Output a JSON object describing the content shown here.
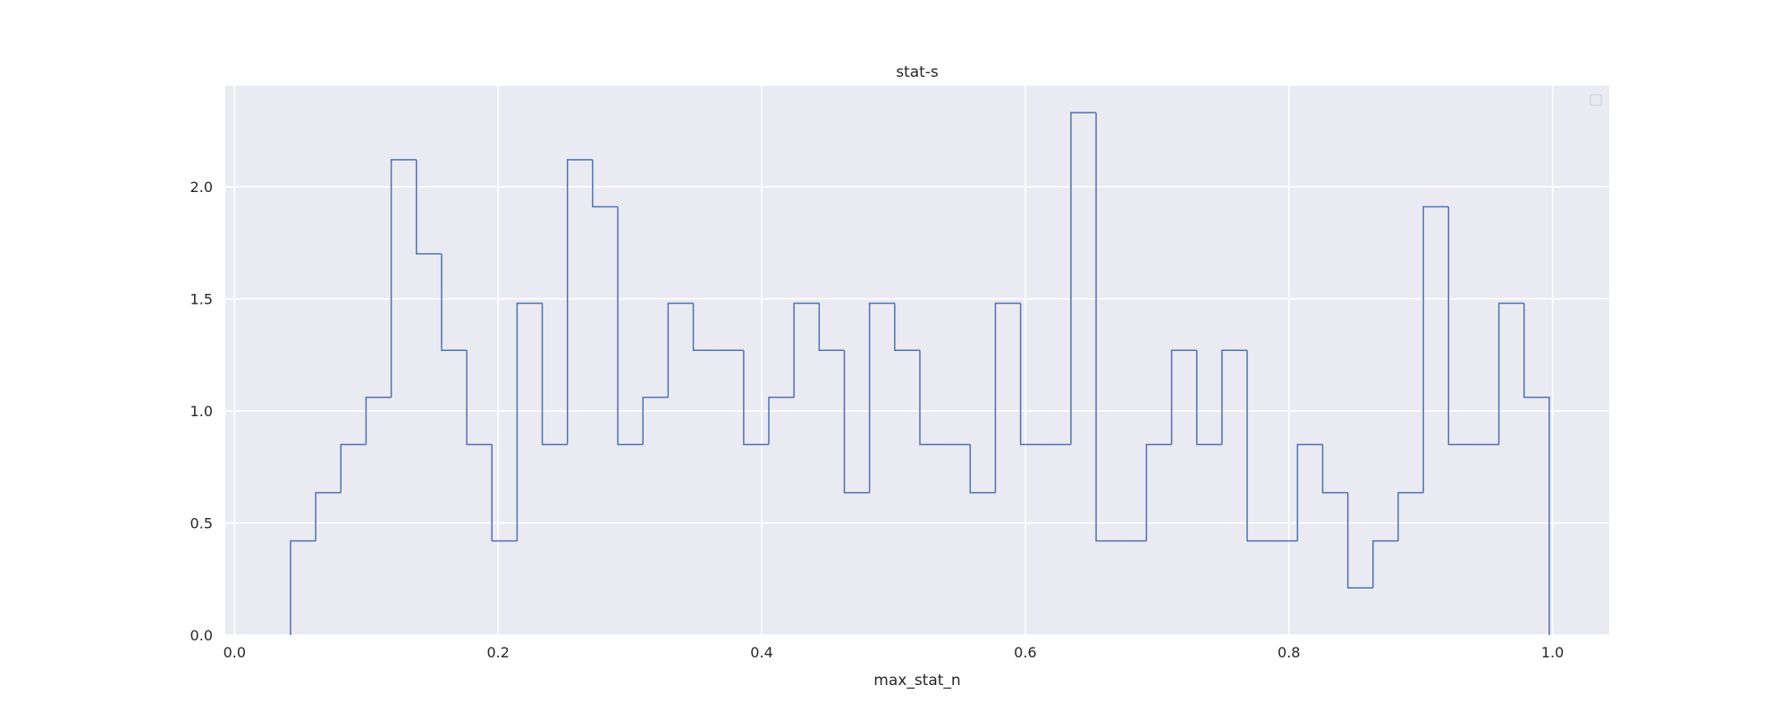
{
  "chart_data": {
    "type": "histogram-step",
    "title": "stat-s",
    "xlabel": "max_stat_n",
    "ylabel": "",
    "xlim": [
      -0.007,
      1.043
    ],
    "ylim": [
      0,
      2.45
    ],
    "xticks": [
      "0.0",
      "0.2",
      "0.4",
      "0.6",
      "0.8",
      "1.0"
    ],
    "yticks": [
      "0.0",
      "0.5",
      "1.0",
      "1.5",
      "2.0"
    ],
    "grid": true,
    "legend": "top-right (empty)",
    "colors": {
      "line": "#4c72b0",
      "plot_background": "#eaeaf2",
      "grid": "#ffffff"
    },
    "bin_edges": [
      0.0425,
      0.0616,
      0.0807,
      0.0998,
      0.1189,
      0.138,
      0.1571,
      0.1762,
      0.1953,
      0.2144,
      0.2335,
      0.2526,
      0.2717,
      0.2908,
      0.3099,
      0.329,
      0.3481,
      0.3672,
      0.3863,
      0.4054,
      0.4245,
      0.4436,
      0.4627,
      0.4818,
      0.5009,
      0.52,
      0.5391,
      0.5582,
      0.5773,
      0.5964,
      0.6155,
      0.6346,
      0.6537,
      0.6728,
      0.6919,
      0.711,
      0.7301,
      0.7492,
      0.7683,
      0.7874,
      0.8065,
      0.8256,
      0.8447,
      0.8638,
      0.8829,
      0.902,
      0.9211,
      0.9402,
      0.9593,
      0.9784,
      0.9975
    ],
    "values": [
      0.42,
      0.635,
      0.85,
      1.06,
      2.12,
      1.7,
      1.27,
      0.85,
      0.42,
      1.48,
      0.85,
      2.12,
      1.91,
      0.85,
      1.06,
      1.48,
      1.27,
      1.27,
      0.85,
      1.06,
      1.48,
      1.27,
      0.635,
      1.48,
      1.27,
      0.85,
      0.85,
      0.635,
      1.48,
      0.85,
      0.85,
      2.33,
      0.42,
      0.42,
      0.85,
      1.27,
      0.85,
      1.27,
      0.42,
      0.42,
      0.85,
      0.635,
      0.21,
      0.42,
      0.635,
      1.91,
      0.85,
      0.85,
      1.48,
      1.06
    ]
  }
}
